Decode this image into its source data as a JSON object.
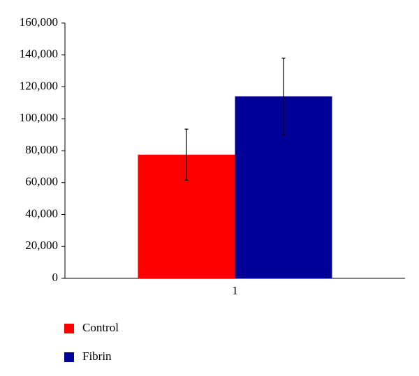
{
  "chart_data": {
    "type": "bar",
    "categories": [
      "1"
    ],
    "series": [
      {
        "name": "Control",
        "color": "#ff0000",
        "values": [
          77500
        ],
        "errors": [
          16000
        ]
      },
      {
        "name": "Fibrin",
        "color": "#000099",
        "values": [
          114000
        ],
        "errors": [
          24000
        ]
      }
    ],
    "ylim": [
      0,
      160000
    ],
    "yticks": [
      0,
      {
        "value": 20000,
        "label": "20,000"
      },
      {
        "value": 40000,
        "label": "40,000"
      },
      {
        "value": 60000,
        "label": "60,000"
      },
      {
        "value": 80000,
        "label": "80,000"
      },
      {
        "value": 100000,
        "label": "100,000"
      },
      {
        "value": 120000,
        "label": "120,000"
      },
      {
        "value": 140000,
        "label": "140,000"
      },
      {
        "value": 160000,
        "label": "160,000"
      }
    ],
    "grid": false,
    "legend": "bottom-left"
  }
}
